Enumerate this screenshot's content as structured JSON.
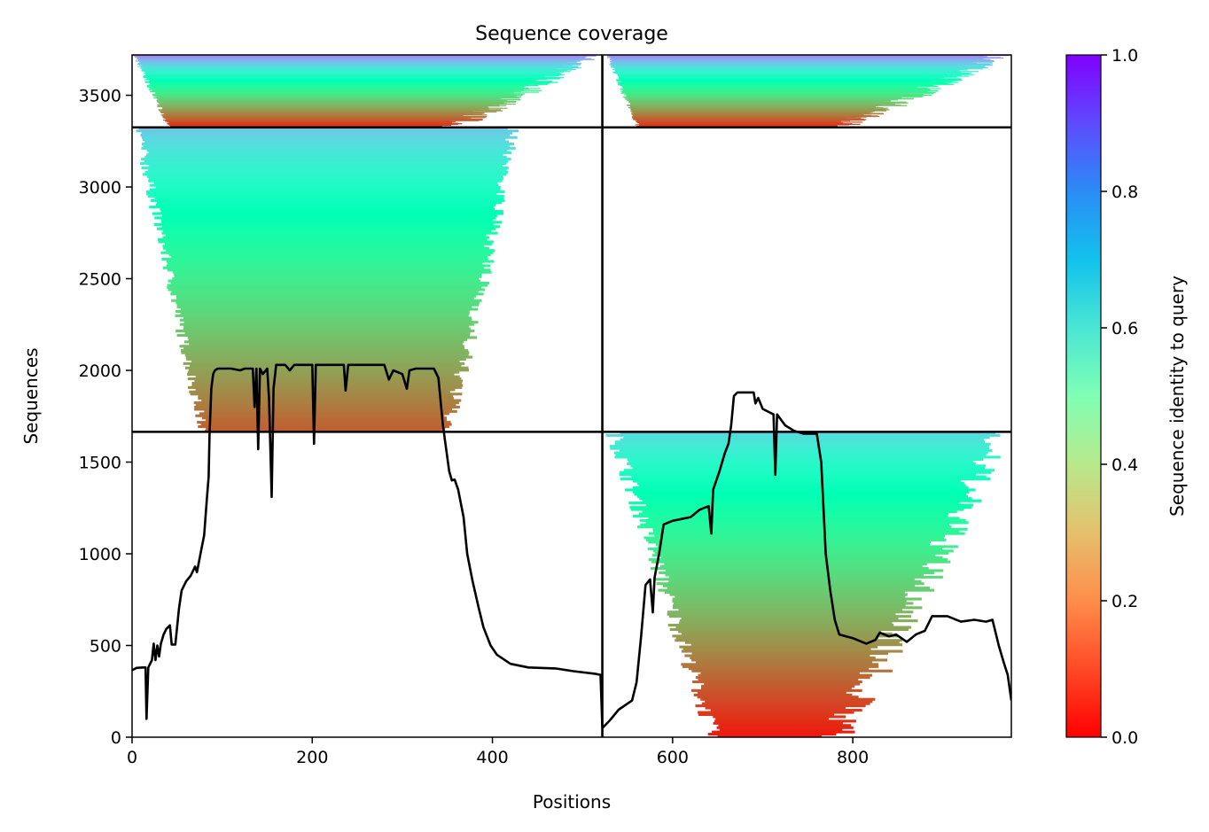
{
  "chart_data": {
    "type": "heatmap",
    "title": "Sequence coverage",
    "xlabel": "Positions",
    "ylabel": "Sequences",
    "xlim": [
      0,
      976
    ],
    "ylim": [
      0,
      3720
    ],
    "x_ticks": [
      0,
      200,
      400,
      600,
      800
    ],
    "y_ticks": [
      0,
      500,
      1000,
      1500,
      2000,
      2500,
      3000,
      3500
    ],
    "grid": false,
    "colorbar": {
      "label": "Sequence identity to query",
      "colormap": "rainbow_r",
      "range": [
        0.0,
        1.0
      ],
      "ticks": [
        "0.0",
        "0.2",
        "0.4",
        "0.6",
        "0.8",
        "1.0"
      ]
    },
    "chain_boundary_x": 522,
    "group_boundaries_y": [
      1665,
      3325
    ],
    "blocks": [
      {
        "name": "chain1-group3",
        "x": [
          0,
          522
        ],
        "y": [
          3325,
          3720
        ],
        "covered_x": [
          0,
          522
        ],
        "core_x": [
          45,
          345
        ],
        "identity_top": 0.85,
        "identity_bottom": 0.05
      },
      {
        "name": "chain2-group3",
        "x": [
          522,
          976
        ],
        "y": [
          3325,
          3720
        ],
        "covered_x": [
          525,
          976
        ],
        "core_x": [
          565,
          770
        ],
        "identity_top": 0.85,
        "identity_bottom": 0.05
      },
      {
        "name": "chain1-group2",
        "x": [
          0,
          522
        ],
        "y": [
          1665,
          3325
        ],
        "covered_x": [
          0,
          430
        ],
        "core_x": [
          85,
          345
        ],
        "identity_top": 0.72,
        "identity_bottom": 0.12
      },
      {
        "name": "chain2-group1",
        "x": [
          522,
          976
        ],
        "y": [
          0,
          1665
        ],
        "covered_x": [
          525,
          976
        ],
        "core_x": [
          655,
          770
        ],
        "identity_top": 0.68,
        "identity_bottom": 0.03
      }
    ],
    "coverage_line": {
      "name": "",
      "color": "#000000",
      "points": [
        [
          0,
          365
        ],
        [
          5,
          378
        ],
        [
          12,
          380
        ],
        [
          15,
          380
        ],
        [
          16,
          100
        ],
        [
          18,
          380
        ],
        [
          22,
          420
        ],
        [
          24,
          510
        ],
        [
          26,
          420
        ],
        [
          28,
          500
        ],
        [
          30,
          440
        ],
        [
          32,
          510
        ],
        [
          35,
          560
        ],
        [
          38,
          590
        ],
        [
          42,
          610
        ],
        [
          44,
          505
        ],
        [
          48,
          505
        ],
        [
          52,
          700
        ],
        [
          55,
          800
        ],
        [
          60,
          850
        ],
        [
          65,
          880
        ],
        [
          70,
          930
        ],
        [
          72,
          900
        ],
        [
          76,
          1000
        ],
        [
          80,
          1100
        ],
        [
          83,
          1300
        ],
        [
          85,
          1420
        ],
        [
          86,
          1650
        ],
        [
          88,
          1900
        ],
        [
          90,
          1980
        ],
        [
          92,
          2000
        ],
        [
          95,
          2010
        ],
        [
          110,
          2010
        ],
        [
          120,
          2000
        ],
        [
          125,
          2010
        ],
        [
          134,
          2010
        ],
        [
          136,
          1800
        ],
        [
          138,
          2010
        ],
        [
          140,
          1570
        ],
        [
          142,
          2010
        ],
        [
          145,
          1980
        ],
        [
          150,
          2010
        ],
        [
          152,
          1850
        ],
        [
          155,
          1310
        ],
        [
          157,
          1900
        ],
        [
          160,
          2030
        ],
        [
          170,
          2030
        ],
        [
          175,
          2000
        ],
        [
          180,
          2030
        ],
        [
          200,
          2030
        ],
        [
          202,
          1600
        ],
        [
          204,
          2030
        ],
        [
          235,
          2030
        ],
        [
          237,
          1890
        ],
        [
          240,
          2030
        ],
        [
          280,
          2030
        ],
        [
          285,
          1950
        ],
        [
          290,
          2000
        ],
        [
          300,
          1980
        ],
        [
          305,
          1900
        ],
        [
          308,
          2000
        ],
        [
          315,
          2010
        ],
        [
          335,
          2010
        ],
        [
          340,
          1960
        ],
        [
          345,
          1700
        ],
        [
          352,
          1450
        ],
        [
          355,
          1400
        ],
        [
          358,
          1405
        ],
        [
          362,
          1350
        ],
        [
          368,
          1200
        ],
        [
          372,
          1000
        ],
        [
          378,
          850
        ],
        [
          385,
          700
        ],
        [
          390,
          600
        ],
        [
          398,
          500
        ],
        [
          405,
          450
        ],
        [
          420,
          400
        ],
        [
          440,
          380
        ],
        [
          470,
          375
        ],
        [
          490,
          360
        ],
        [
          515,
          345
        ],
        [
          520,
          340
        ],
        [
          522,
          50
        ],
        [
          530,
          90
        ],
        [
          540,
          150
        ],
        [
          555,
          200
        ],
        [
          560,
          300
        ],
        [
          565,
          550
        ],
        [
          570,
          830
        ],
        [
          575,
          860
        ],
        [
          578,
          680
        ],
        [
          580,
          870
        ],
        [
          585,
          1000
        ],
        [
          590,
          1160
        ],
        [
          600,
          1180
        ],
        [
          610,
          1190
        ],
        [
          620,
          1200
        ],
        [
          630,
          1240
        ],
        [
          640,
          1260
        ],
        [
          643,
          1110
        ],
        [
          645,
          1350
        ],
        [
          652,
          1450
        ],
        [
          658,
          1550
        ],
        [
          662,
          1600
        ],
        [
          665,
          1700
        ],
        [
          668,
          1860
        ],
        [
          672,
          1880
        ],
        [
          690,
          1880
        ],
        [
          692,
          1820
        ],
        [
          695,
          1850
        ],
        [
          700,
          1790
        ],
        [
          708,
          1770
        ],
        [
          712,
          1760
        ],
        [
          714,
          1430
        ],
        [
          716,
          1760
        ],
        [
          725,
          1700
        ],
        [
          735,
          1670
        ],
        [
          745,
          1655
        ],
        [
          760,
          1655
        ],
        [
          765,
          1500
        ],
        [
          770,
          1000
        ],
        [
          775,
          800
        ],
        [
          780,
          640
        ],
        [
          785,
          560
        ],
        [
          800,
          540
        ],
        [
          815,
          510
        ],
        [
          825,
          530
        ],
        [
          830,
          570
        ],
        [
          840,
          550
        ],
        [
          848,
          560
        ],
        [
          860,
          520
        ],
        [
          870,
          560
        ],
        [
          880,
          580
        ],
        [
          888,
          660
        ],
        [
          905,
          660
        ],
        [
          920,
          630
        ],
        [
          935,
          640
        ],
        [
          948,
          630
        ],
        [
          955,
          640
        ],
        [
          962,
          500
        ],
        [
          968,
          400
        ],
        [
          972,
          340
        ],
        [
          976,
          200
        ]
      ]
    }
  }
}
